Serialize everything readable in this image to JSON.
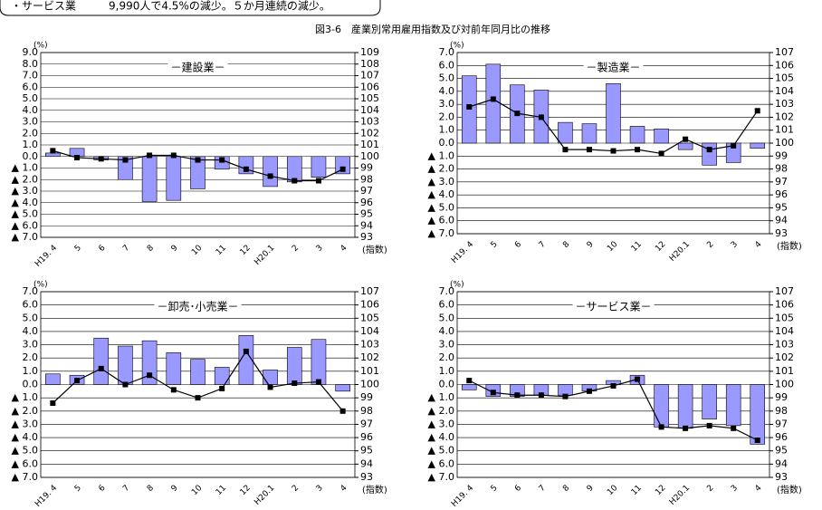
{
  "note": "・サービス業　　　9,990人で4.5%の減少。５か月連続の減少。",
  "figure_title": "図3-6　産業別常用雇用指数及び対前年同月比の推移",
  "chart_data": [
    {
      "type": "bar_line",
      "title": "－建設業－",
      "y_unit": "(%)",
      "y2_unit": "(指数)",
      "categories": [
        "H19. 4",
        "5",
        "6",
        "7",
        "8",
        "9",
        "10",
        "11",
        "12",
        "H20.1",
        "2",
        "3",
        "4"
      ],
      "series": [
        {
          "color": "#9999ff",
          "values": [
            0.3,
            0.7,
            -0.3,
            -2.0,
            -3.9,
            -3.8,
            -2.8,
            -1.1,
            -1.5,
            -2.6,
            -2.2,
            -1.8,
            -1.5
          ]
        },
        {
          "color": "#000000",
          "axis": "y2",
          "values": [
            100.5,
            99.9,
            99.8,
            99.7,
            100.1,
            100.1,
            99.7,
            99.7,
            98.9,
            98.3,
            97.9,
            97.9,
            98.9
          ]
        }
      ],
      "ylim": [
        -7,
        9
      ],
      "yticks": [
        {
          "value": 9,
          "label": "9.0"
        },
        {
          "value": 8,
          "label": "8.0"
        },
        {
          "value": 7,
          "label": "7.0"
        },
        {
          "value": 6,
          "label": "6.0"
        },
        {
          "value": 5,
          "label": "5.0"
        },
        {
          "value": 4,
          "label": "4.0"
        },
        {
          "value": 3,
          "label": "3.0"
        },
        {
          "value": 2,
          "label": "2.0"
        },
        {
          "value": 1,
          "label": "1.0"
        },
        {
          "value": 0,
          "label": "0.0"
        },
        {
          "value": -1,
          "label": "▲ 1.0"
        },
        {
          "value": -2,
          "label": "▲ 2.0"
        },
        {
          "value": -3,
          "label": "▲ 3.0"
        },
        {
          "value": -4,
          "label": "▲ 4.0"
        },
        {
          "value": -5,
          "label": "▲ 5.0"
        },
        {
          "value": -6,
          "label": "▲ 6.0"
        },
        {
          "value": -7,
          "label": "▲ 7.0"
        }
      ],
      "y2lim": [
        93,
        109
      ],
      "y2ticks": [
        109,
        108,
        107,
        106,
        105,
        104,
        103,
        102,
        101,
        100,
        99,
        98,
        97,
        96,
        95,
        94,
        93
      ],
      "grid": true
    },
    {
      "type": "bar_line",
      "title": "－製造業－",
      "y_unit": "(%)",
      "y2_unit": "(指数)",
      "categories": [
        "H19. 4",
        "5",
        "6",
        "7",
        "8",
        "9",
        "10",
        "11",
        "12",
        "H20.1",
        "2",
        "3",
        "4"
      ],
      "series": [
        {
          "color": "#9999ff",
          "values": [
            5.2,
            6.1,
            4.5,
            4.1,
            1.6,
            1.5,
            4.6,
            1.3,
            1.1,
            -0.5,
            -1.7,
            -1.5,
            -0.4
          ]
        },
        {
          "color": "#000000",
          "axis": "y2",
          "values": [
            102.8,
            103.4,
            102.3,
            102.0,
            99.5,
            99.5,
            99.4,
            99.5,
            99.2,
            100.3,
            99.5,
            99.8,
            102.5
          ]
        }
      ],
      "ylim": [
        -7,
        7
      ],
      "yticks": [
        {
          "value": 7,
          "label": "7.0"
        },
        {
          "value": 6,
          "label": "6.0"
        },
        {
          "value": 5,
          "label": "5.0"
        },
        {
          "value": 4,
          "label": "4.0"
        },
        {
          "value": 3,
          "label": "3.0"
        },
        {
          "value": 2,
          "label": "2.0"
        },
        {
          "value": 1,
          "label": "1.0"
        },
        {
          "value": 0,
          "label": "0.0"
        },
        {
          "value": -1,
          "label": "▲ 1.0"
        },
        {
          "value": -2,
          "label": "▲ 2.0"
        },
        {
          "value": -3,
          "label": "▲ 3.0"
        },
        {
          "value": -4,
          "label": "▲ 4.0"
        },
        {
          "value": -5,
          "label": "▲ 5.0"
        },
        {
          "value": -6,
          "label": "▲ 6.0"
        },
        {
          "value": -7,
          "label": "▲ 7.0"
        }
      ],
      "y2lim": [
        93,
        107
      ],
      "y2ticks": [
        107,
        106,
        105,
        104,
        103,
        102,
        101,
        100,
        99,
        98,
        97,
        96,
        95,
        94,
        93
      ],
      "grid": true
    },
    {
      "type": "bar_line",
      "title": "－卸売･小売業－",
      "y_unit": "(%)",
      "y2_unit": "(指数)",
      "categories": [
        "H19. 4",
        "5",
        "6",
        "7",
        "8",
        "9",
        "10",
        "11",
        "12",
        "H20.1",
        "2",
        "3",
        "4"
      ],
      "series": [
        {
          "color": "#9999ff",
          "values": [
            0.8,
            0.7,
            3.5,
            2.9,
            3.3,
            2.4,
            1.9,
            1.3,
            3.7,
            1.1,
            2.8,
            3.4,
            -0.5
          ]
        },
        {
          "color": "#000000",
          "axis": "y2",
          "values": [
            98.6,
            100.3,
            101.2,
            100.0,
            100.7,
            99.6,
            99.0,
            99.7,
            102.5,
            99.8,
            100.1,
            100.2,
            98.0
          ]
        }
      ],
      "ylim": [
        -7,
        7
      ],
      "yticks": [
        {
          "value": 7,
          "label": "7.0"
        },
        {
          "value": 6,
          "label": "6.0"
        },
        {
          "value": 5,
          "label": "5.0"
        },
        {
          "value": 4,
          "label": "4.0"
        },
        {
          "value": 3,
          "label": "3.0"
        },
        {
          "value": 2,
          "label": "2.0"
        },
        {
          "value": 1,
          "label": "1.0"
        },
        {
          "value": 0,
          "label": "0.0"
        },
        {
          "value": -1,
          "label": "▲ 1.0"
        },
        {
          "value": -2,
          "label": "▲ 2.0"
        },
        {
          "value": -3,
          "label": "▲ 3.0"
        },
        {
          "value": -4,
          "label": "▲ 4.0"
        },
        {
          "value": -5,
          "label": "▲ 5.0"
        },
        {
          "value": -6,
          "label": "▲ 6.0"
        },
        {
          "value": -7,
          "label": "▲ 7.0"
        }
      ],
      "y2lim": [
        93,
        107
      ],
      "y2ticks": [
        107,
        106,
        105,
        104,
        103,
        102,
        101,
        100,
        99,
        98,
        97,
        96,
        95,
        94,
        93
      ],
      "grid": true
    },
    {
      "type": "bar_line",
      "title": "－サービス業－",
      "y_unit": "(%)",
      "y2_unit": "(指数)",
      "categories": [
        "H19. 4",
        "5",
        "6",
        "7",
        "8",
        "9",
        "10",
        "11",
        "12",
        "H20.1",
        "2",
        "3",
        "4"
      ],
      "series": [
        {
          "color": "#9999ff",
          "values": [
            -0.4,
            -0.9,
            -0.9,
            -0.8,
            -0.8,
            -0.5,
            0.3,
            0.7,
            -3.2,
            -3.3,
            -2.6,
            -3.1,
            -4.5
          ]
        },
        {
          "color": "#000000",
          "axis": "y2",
          "values": [
            100.3,
            99.4,
            99.2,
            99.2,
            99.1,
            99.5,
            99.9,
            100.4,
            96.8,
            96.7,
            96.9,
            96.7,
            95.8
          ]
        }
      ],
      "ylim": [
        -7,
        7
      ],
      "yticks": [
        {
          "value": 7,
          "label": "7.0"
        },
        {
          "value": 6,
          "label": "6.0"
        },
        {
          "value": 5,
          "label": "5.0"
        },
        {
          "value": 4,
          "label": "4.0"
        },
        {
          "value": 3,
          "label": "3.0"
        },
        {
          "value": 2,
          "label": "2.0"
        },
        {
          "value": 1,
          "label": "1.0"
        },
        {
          "value": 0,
          "label": "0.0"
        },
        {
          "value": -1,
          "label": "▲ 1.0"
        },
        {
          "value": -2,
          "label": "▲ 2.0"
        },
        {
          "value": -3,
          "label": "▲ 3.0"
        },
        {
          "value": -4,
          "label": "▲ 4.0"
        },
        {
          "value": -5,
          "label": "▲ 5.0"
        },
        {
          "value": -6,
          "label": "▲ 6.0"
        },
        {
          "value": -7,
          "label": "▲ 7.0"
        }
      ],
      "y2lim": [
        93,
        107
      ],
      "y2ticks": [
        107,
        106,
        105,
        104,
        103,
        102,
        101,
        100,
        99,
        98,
        97,
        96,
        95,
        94,
        93
      ],
      "grid": true
    }
  ]
}
